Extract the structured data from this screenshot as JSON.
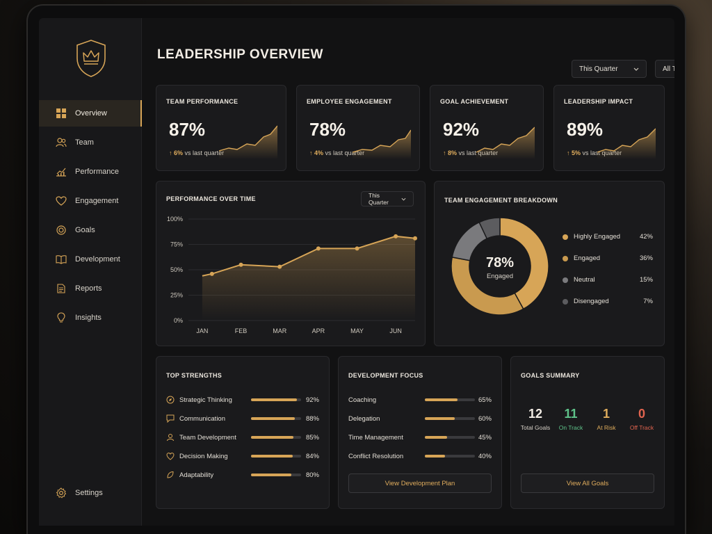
{
  "app": {
    "title": "LEADERSHIP OVERVIEW"
  },
  "colors": {
    "accent": "#d7a557",
    "green": "#5fc38a",
    "red": "#e2644f",
    "grey": "#7a7a7d",
    "dark_grey": "#5c5c5f",
    "bg": "#121213"
  },
  "filters": {
    "period": "This Quarter",
    "teams": "All Teams",
    "more": "•••"
  },
  "sidebar": {
    "items": [
      {
        "label": "Overview",
        "icon": "grid-icon",
        "active": true
      },
      {
        "label": "Team",
        "icon": "users-icon"
      },
      {
        "label": "Performance",
        "icon": "chart-icon"
      },
      {
        "label": "Engagement",
        "icon": "heart-icon"
      },
      {
        "label": "Goals",
        "icon": "target-icon"
      },
      {
        "label": "Development",
        "icon": "book-icon"
      },
      {
        "label": "Reports",
        "icon": "document-icon"
      },
      {
        "label": "Insights",
        "icon": "lightbulb-icon"
      }
    ],
    "settings": "Settings"
  },
  "kpis": [
    {
      "title": "TEAM PERFORMANCE",
      "value": "87%",
      "delta": "6%",
      "delta_text": "vs last quarter"
    },
    {
      "title": "EMPLOYEE ENGAGEMENT",
      "value": "78%",
      "delta": "4%",
      "delta_text": "vs last quarter"
    },
    {
      "title": "GOAL ACHIEVEMENT",
      "value": "92%",
      "delta": "8%",
      "delta_text": "vs last quarter"
    },
    {
      "title": "LEADERSHIP IMPACT",
      "value": "89%",
      "delta": "5%",
      "delta_text": "vs last quarter"
    }
  ],
  "performance": {
    "title": "PERFORMANCE OVER TIME",
    "period": "This Quarter"
  },
  "engagement": {
    "title": "TEAM ENGAGEMENT BREAKDOWN",
    "center_value": "78%",
    "center_label": "Engaged"
  },
  "strengths": {
    "title": "TOP STRENGTHS",
    "items": [
      {
        "label": "Strategic Thinking",
        "value": "92%",
        "pct": 92,
        "icon": "compass-icon"
      },
      {
        "label": "Communication",
        "value": "88%",
        "pct": 88,
        "icon": "chat-icon"
      },
      {
        "label": "Team Development",
        "value": "85%",
        "pct": 85,
        "icon": "people-icon"
      },
      {
        "label": "Decision Making",
        "value": "84%",
        "pct": 84,
        "icon": "heart-icon"
      },
      {
        "label": "Adaptability",
        "value": "80%",
        "pct": 80,
        "icon": "leaf-icon"
      }
    ]
  },
  "development": {
    "title": "DEVELOPMENT FOCUS",
    "items": [
      {
        "label": "Coaching",
        "value": "65%",
        "pct": 65
      },
      {
        "label": "Delegation",
        "value": "60%",
        "pct": 60
      },
      {
        "label": "Time Management",
        "value": "45%",
        "pct": 45
      },
      {
        "label": "Conflict Resolution",
        "value": "40%",
        "pct": 40
      }
    ],
    "button": "View Development Plan"
  },
  "goals": {
    "title": "GOALS SUMMARY",
    "stats": [
      {
        "num": "12",
        "label": "Total Goals",
        "color": "#f2ede5"
      },
      {
        "num": "11",
        "label": "On Track",
        "color": "#5fc38a"
      },
      {
        "num": "1",
        "label": "At Risk",
        "color": "#e0ad5d"
      },
      {
        "num": "0",
        "label": "Off Track",
        "color": "#e2644f"
      }
    ],
    "button": "View All Goals"
  },
  "chart_data": [
    {
      "type": "area",
      "title": "PERFORMANCE OVER TIME",
      "categories": [
        "JAN",
        "FEB",
        "MAR",
        "APR",
        "MAY",
        "JUN"
      ],
      "x": [
        0,
        0.25,
        1,
        2,
        3,
        4,
        5,
        5.5
      ],
      "values": [
        44,
        46,
        55,
        53,
        71,
        71,
        83,
        81
      ],
      "ylim": [
        0,
        100
      ],
      "yticks": [
        "0%",
        "25%",
        "50%",
        "75%",
        "100%"
      ],
      "grid": true
    },
    {
      "type": "pie",
      "title": "TEAM ENGAGEMENT BREAKDOWN",
      "series": [
        {
          "name": "Highly Engaged",
          "value": 42,
          "label": "42%",
          "color": "#d7a557"
        },
        {
          "name": "Engaged",
          "value": 36,
          "label": "36%",
          "color": "#c99a4f"
        },
        {
          "name": "Neutral",
          "value": 15,
          "label": "15%",
          "color": "#7a7a7d"
        },
        {
          "name": "Disengaged",
          "value": 7,
          "label": "7%",
          "color": "#5c5c5f"
        }
      ],
      "legend": "right"
    }
  ]
}
